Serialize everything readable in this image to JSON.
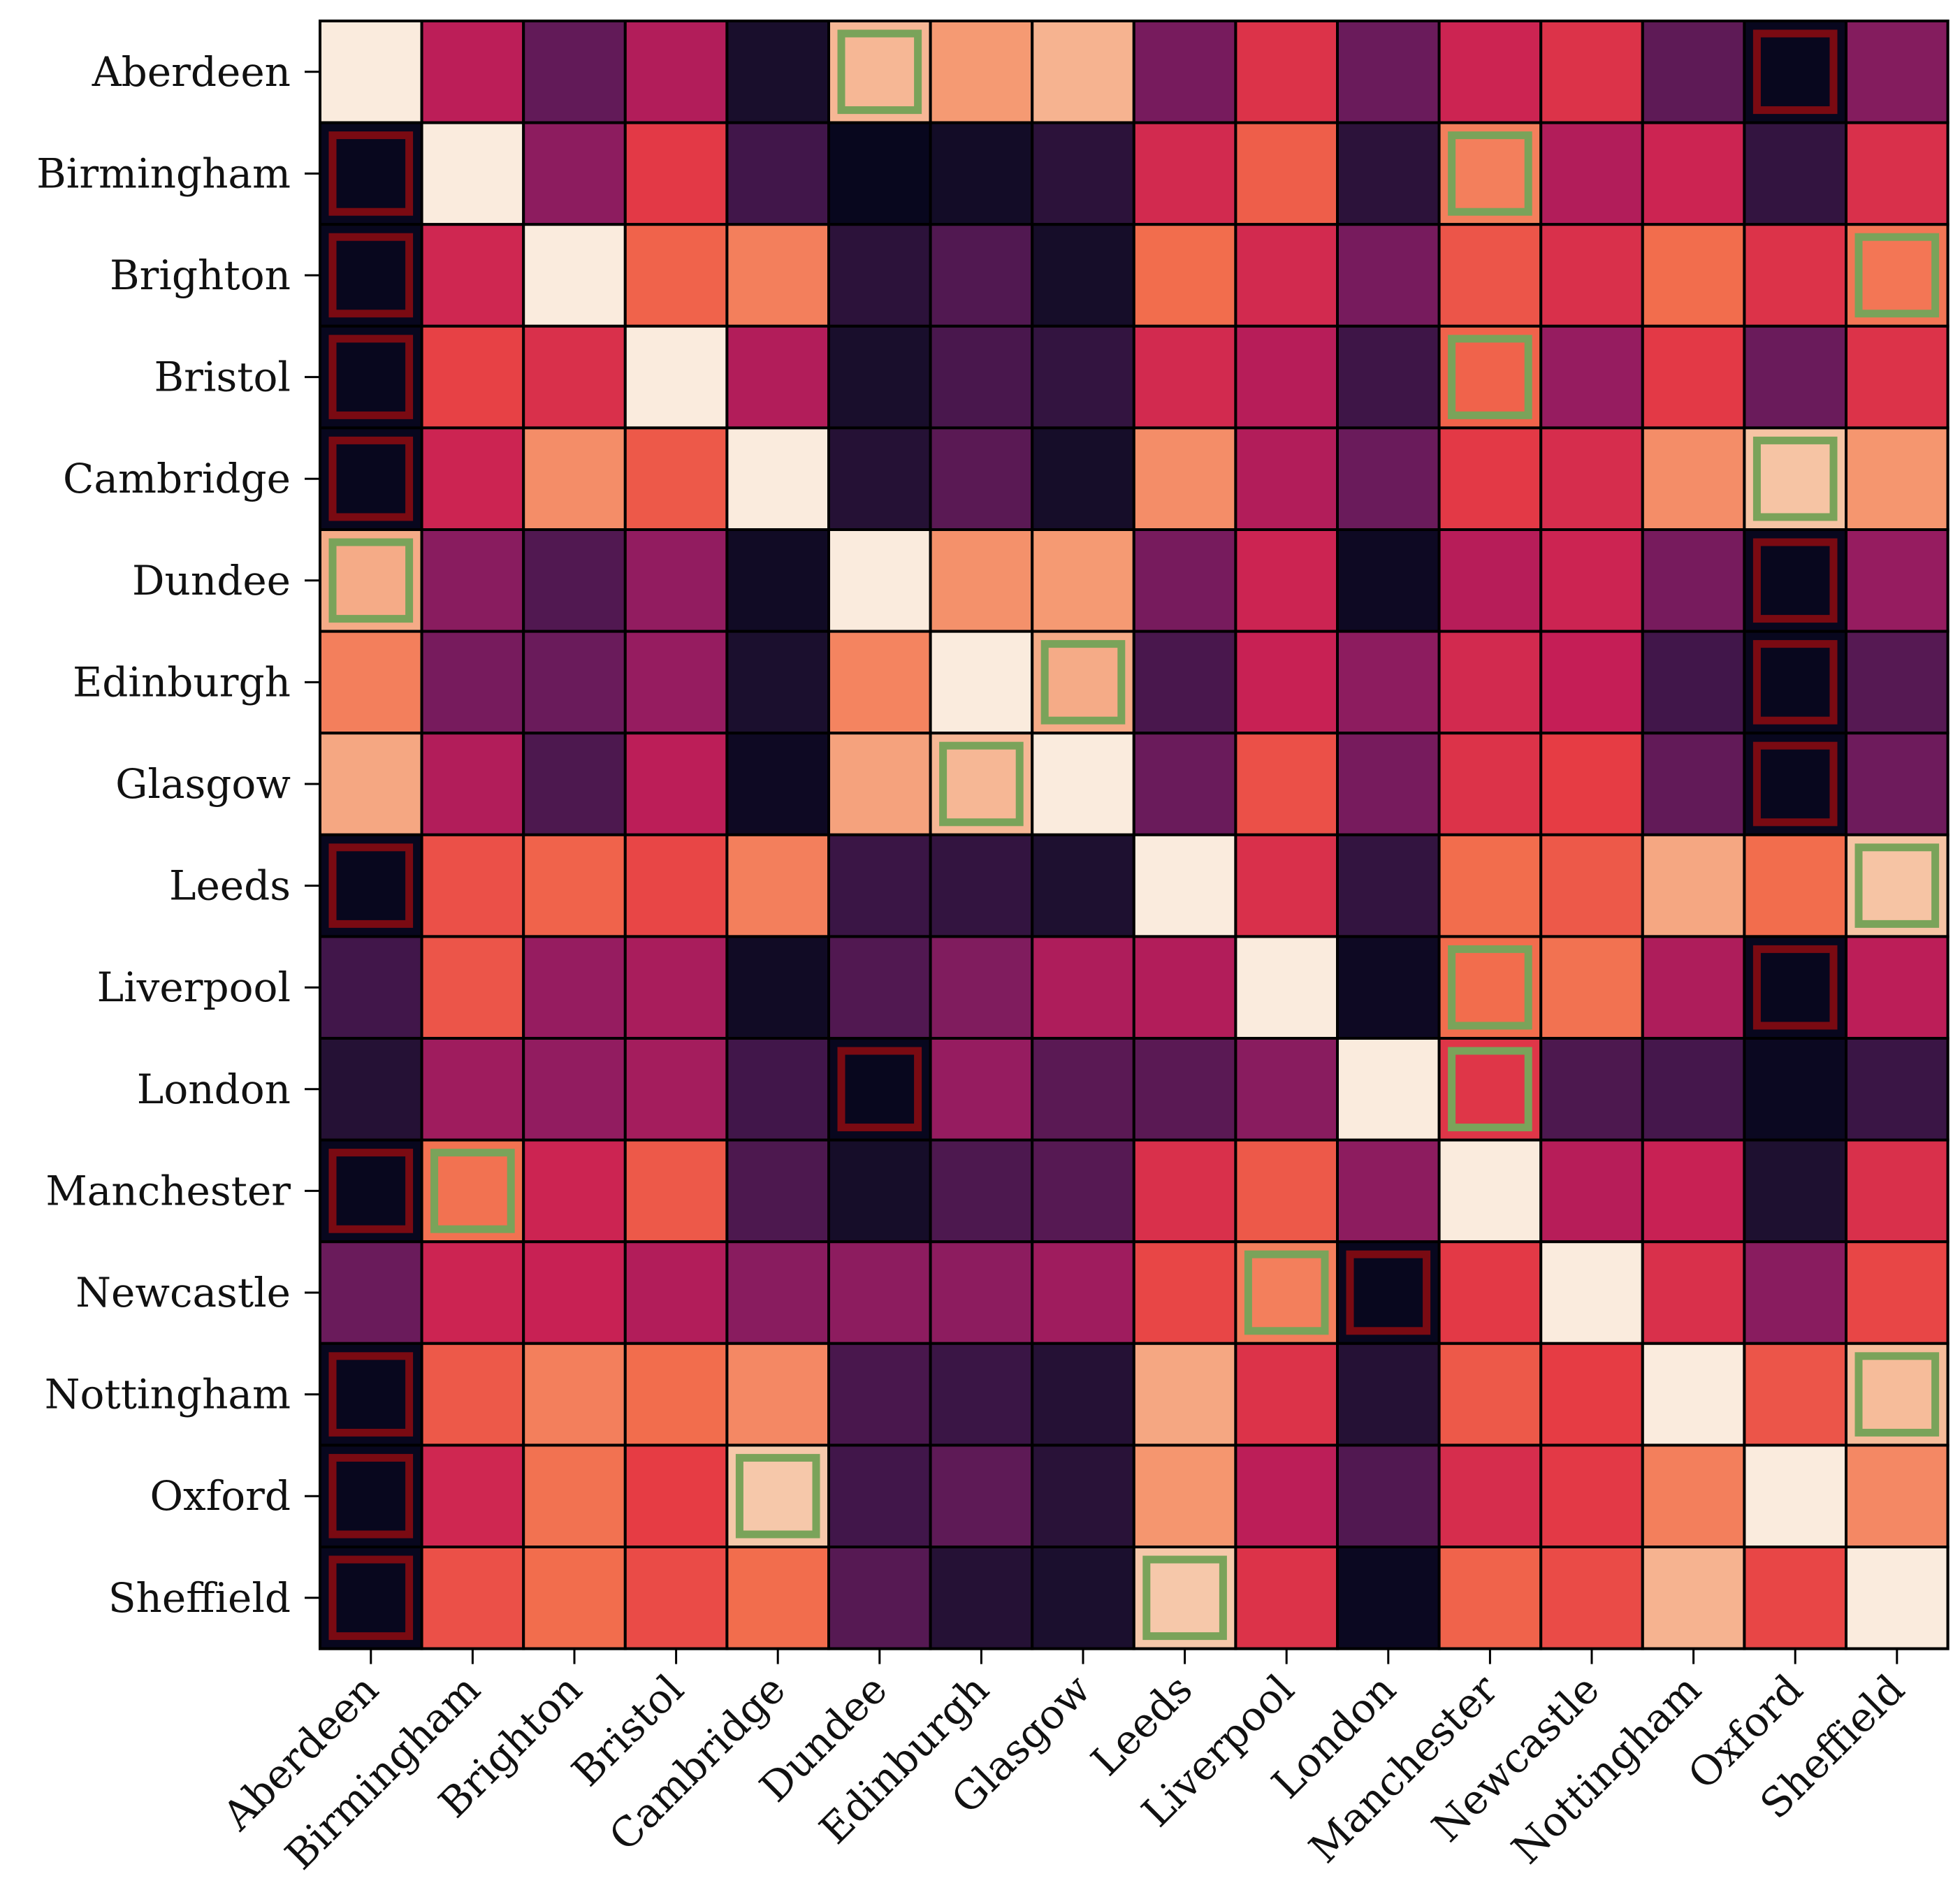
{
  "chart_data": {
    "type": "heatmap",
    "title": "",
    "xlabel": "",
    "ylabel": "",
    "colormap": "rocket",
    "value_range": [
      0,
      1
    ],
    "labels": [
      "Aberdeen",
      "Birmingham",
      "Brighton",
      "Bristol",
      "Cambridge",
      "Dundee",
      "Edinburgh",
      "Glasgow",
      "Leeds",
      "Liverpool",
      "London",
      "Manchester",
      "Newcastle",
      "Nottingham",
      "Oxford",
      "Sheffield"
    ],
    "values": [
      [
        1.0,
        0.48,
        0.28,
        0.46,
        0.08,
        0.87,
        0.8,
        0.86,
        0.33,
        0.57,
        0.3,
        0.52,
        0.57,
        0.27,
        0.02,
        0.36
      ],
      [
        0.02,
        1.0,
        0.38,
        0.59,
        0.2,
        0.02,
        0.06,
        0.14,
        0.54,
        0.67,
        0.14,
        0.74,
        0.46,
        0.52,
        0.16,
        0.56
      ],
      [
        0.02,
        0.53,
        1.0,
        0.68,
        0.74,
        0.14,
        0.24,
        0.07,
        0.7,
        0.54,
        0.33,
        0.65,
        0.56,
        0.7,
        0.57,
        0.72
      ],
      [
        0.02,
        0.61,
        0.56,
        1.0,
        0.46,
        0.08,
        0.22,
        0.16,
        0.54,
        0.47,
        0.19,
        0.68,
        0.4,
        0.59,
        0.3,
        0.57
      ],
      [
        0.02,
        0.52,
        0.77,
        0.66,
        1.0,
        0.12,
        0.26,
        0.07,
        0.77,
        0.46,
        0.3,
        0.59,
        0.55,
        0.77,
        0.9,
        0.79
      ],
      [
        0.84,
        0.37,
        0.24,
        0.39,
        0.05,
        1.0,
        0.78,
        0.8,
        0.33,
        0.52,
        0.04,
        0.47,
        0.52,
        0.33,
        0.02,
        0.4
      ],
      [
        0.74,
        0.33,
        0.3,
        0.4,
        0.09,
        0.75,
        1.0,
        0.84,
        0.22,
        0.51,
        0.38,
        0.54,
        0.5,
        0.2,
        0.02,
        0.25
      ],
      [
        0.83,
        0.46,
        0.23,
        0.48,
        0.04,
        0.82,
        0.87,
        1.0,
        0.3,
        0.64,
        0.33,
        0.57,
        0.6,
        0.28,
        0.02,
        0.31
      ],
      [
        0.02,
        0.64,
        0.68,
        0.62,
        0.74,
        0.18,
        0.16,
        0.1,
        1.0,
        0.56,
        0.16,
        0.7,
        0.66,
        0.83,
        0.7,
        0.9
      ],
      [
        0.2,
        0.65,
        0.4,
        0.44,
        0.05,
        0.24,
        0.35,
        0.45,
        0.46,
        1.0,
        0.04,
        0.7,
        0.71,
        0.45,
        0.02,
        0.48
      ],
      [
        0.12,
        0.42,
        0.39,
        0.43,
        0.2,
        0.02,
        0.4,
        0.26,
        0.26,
        0.37,
        1.0,
        0.58,
        0.23,
        0.21,
        0.03,
        0.18
      ],
      [
        0.02,
        0.71,
        0.52,
        0.66,
        0.23,
        0.07,
        0.23,
        0.25,
        0.56,
        0.66,
        0.38,
        1.0,
        0.47,
        0.51,
        0.1,
        0.56
      ],
      [
        0.3,
        0.52,
        0.51,
        0.46,
        0.37,
        0.38,
        0.38,
        0.42,
        0.62,
        0.74,
        0.02,
        0.59,
        1.0,
        0.56,
        0.37,
        0.62
      ],
      [
        0.02,
        0.66,
        0.74,
        0.7,
        0.76,
        0.22,
        0.18,
        0.12,
        0.83,
        0.57,
        0.12,
        0.66,
        0.6,
        1.0,
        0.65,
        0.88
      ],
      [
        0.02,
        0.53,
        0.71,
        0.6,
        0.91,
        0.2,
        0.27,
        0.13,
        0.79,
        0.48,
        0.24,
        0.55,
        0.59,
        0.74,
        1.0,
        0.76
      ],
      [
        0.02,
        0.64,
        0.7,
        0.63,
        0.7,
        0.25,
        0.12,
        0.09,
        0.91,
        0.57,
        0.03,
        0.68,
        0.63,
        0.86,
        0.62,
        1.0
      ]
    ],
    "highlights": {
      "high": {
        "color": "#7aa35a",
        "cells": [
          [
            0,
            5
          ],
          [
            1,
            11
          ],
          [
            2,
            15
          ],
          [
            3,
            11
          ],
          [
            4,
            14
          ],
          [
            5,
            0
          ],
          [
            6,
            7
          ],
          [
            7,
            6
          ],
          [
            8,
            15
          ],
          [
            9,
            11
          ],
          [
            10,
            11
          ],
          [
            11,
            1
          ],
          [
            12,
            9
          ],
          [
            13,
            15
          ],
          [
            14,
            4
          ],
          [
            15,
            8
          ]
        ]
      },
      "low": {
        "color": "#7a0a12",
        "cells": [
          [
            0,
            14
          ],
          [
            1,
            0
          ],
          [
            2,
            0
          ],
          [
            3,
            0
          ],
          [
            4,
            0
          ],
          [
            5,
            14
          ],
          [
            6,
            14
          ],
          [
            7,
            14
          ],
          [
            8,
            0
          ],
          [
            9,
            14
          ],
          [
            10,
            5
          ],
          [
            11,
            0
          ],
          [
            12,
            10
          ],
          [
            13,
            0
          ],
          [
            14,
            0
          ],
          [
            15,
            0
          ]
        ]
      }
    },
    "grid": true,
    "legend": "none"
  }
}
